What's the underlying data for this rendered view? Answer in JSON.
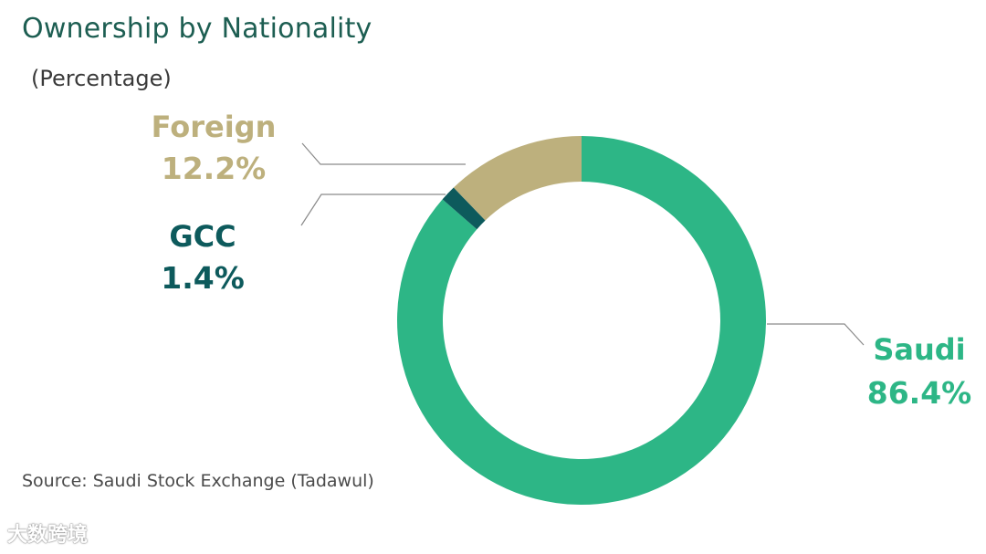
{
  "header": {
    "title": "Ownership by Nationality",
    "subtitle": "(Percentage)"
  },
  "footer": {
    "source": "Source: Saudi Stock Exchange (Tadawul)",
    "watermark": "大数跨境"
  },
  "chart_data": {
    "type": "pie",
    "variant": "donut",
    "title": "Ownership by Nationality",
    "subtitle": "(Percentage)",
    "unit": "%",
    "categories": [
      "Saudi",
      "GCC",
      "Foreign"
    ],
    "values": [
      86.4,
      1.4,
      12.2
    ],
    "value_labels": [
      "86.4%",
      "1.4%",
      "12.2%"
    ],
    "colors": [
      "#2db686",
      "#0d5a5c",
      "#bdb07d"
    ],
    "start": "top, clockwise",
    "legend": "direct labels with leader lines"
  }
}
